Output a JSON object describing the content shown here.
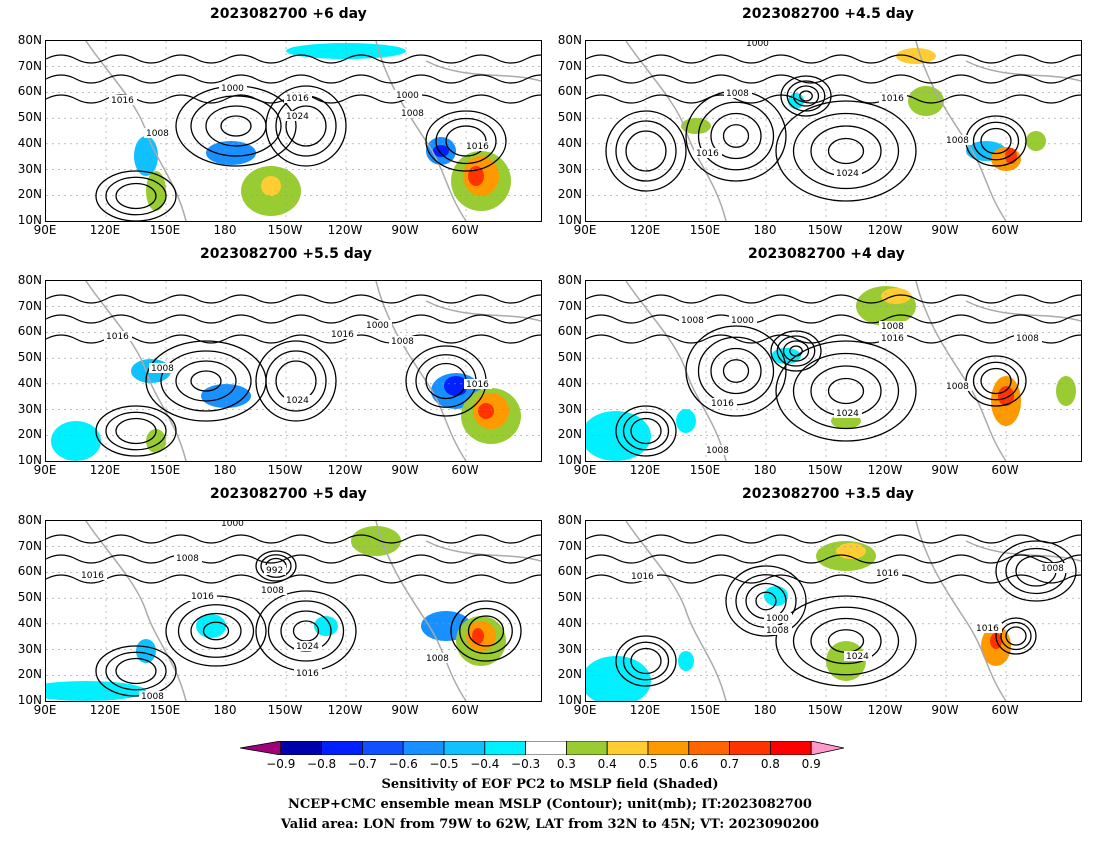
{
  "panels": [
    {
      "title": "2023082700  +6  day"
    },
    {
      "title": "2023082700  +4.5  day"
    },
    {
      "title": "2023082700  +5.5  day"
    },
    {
      "title": "2023082700  +4  day"
    },
    {
      "title": "2023082700  +5  day"
    },
    {
      "title": "2023082700  +3.5  day"
    }
  ],
  "lat_ticks": [
    "80N",
    "70N",
    "60N",
    "50N",
    "40N",
    "30N",
    "20N",
    "10N"
  ],
  "lon_ticks": [
    "90E",
    "120E",
    "150E",
    "180",
    "150W",
    "120W",
    "90W",
    "60W"
  ],
  "contour_labels": [
    "1000",
    "1008",
    "1016",
    "1024",
    "992"
  ],
  "colorbar": {
    "labels": [
      "−0.9",
      "−0.8",
      "−0.7",
      "−0.6",
      "−0.5",
      "−0.4",
      "−0.3",
      "0.3",
      "0.4",
      "0.5",
      "0.6",
      "0.7",
      "0.8",
      "0.9"
    ],
    "colors": [
      "#a0007a",
      "#0000aa",
      "#0020ff",
      "#1050ff",
      "#1890ff",
      "#10c0ff",
      "#00f0ff",
      "#ffffff",
      "#99cc33",
      "#ffcc33",
      "#ff9900",
      "#ff6600",
      "#ff3300",
      "#ff0000",
      "#ff99cc"
    ]
  },
  "caption": {
    "line1": "Sensitivity of EOF PC2 to MSLP field (Shaded)",
    "line2": "NCEP+CMC ensemble mean MSLP (Contour); unit(mb); IT:2023082700",
    "line3": "Valid area: LON from 79W to 62W, LAT from 32N to 45N; VT: 2023090200"
  }
}
